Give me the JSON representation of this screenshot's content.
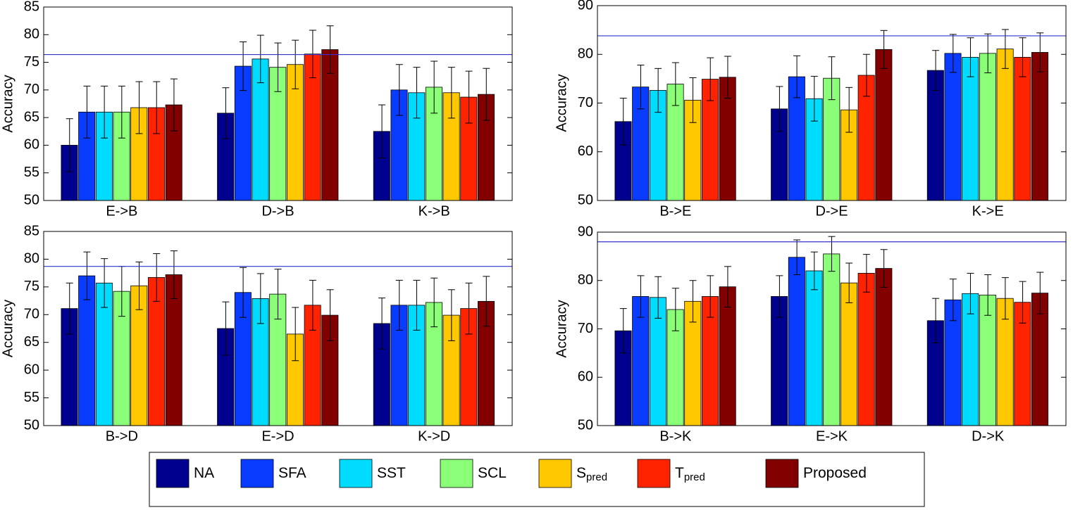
{
  "chart_data": [
    {
      "type": "bar",
      "y_label": "Accuracy",
      "categories": [
        "E->B",
        "D->B",
        "K->B"
      ],
      "ylim": [
        50,
        85
      ],
      "yticks": [
        50,
        55,
        60,
        65,
        70,
        75,
        80,
        85
      ],
      "reference_line": 76.4,
      "series": [
        {
          "name": "NA",
          "color": "#00008f",
          "values": [
            60,
            65.8,
            62.5
          ],
          "errors": [
            4.8,
            4.6,
            4.8
          ]
        },
        {
          "name": "SFA",
          "color": "#0a3cff",
          "values": [
            66,
            74.3,
            70
          ],
          "errors": [
            4.7,
            4.4,
            4.6
          ]
        },
        {
          "name": "SST",
          "color": "#00dcff",
          "values": [
            66,
            75.6,
            69.5
          ],
          "errors": [
            4.7,
            4.3,
            4.6
          ]
        },
        {
          "name": "SCL",
          "color": "#8cff78",
          "values": [
            66,
            74.1,
            70.5
          ],
          "errors": [
            4.7,
            4.4,
            4.7
          ]
        },
        {
          "name": "S",
          "name_sub": "pred",
          "color": "#ffc800",
          "values": [
            66.8,
            74.6,
            69.5
          ],
          "errors": [
            4.7,
            4.4,
            4.6
          ]
        },
        {
          "name": "T",
          "name_sub": "pred",
          "color": "#ff2300",
          "values": [
            66.8,
            76.5,
            68.7
          ],
          "errors": [
            4.7,
            4.3,
            4.7
          ]
        },
        {
          "name": "Proposed",
          "color": "#820000",
          "values": [
            67.3,
            77.3,
            69.2
          ],
          "errors": [
            4.7,
            4.3,
            4.7
          ]
        }
      ]
    },
    {
      "type": "bar",
      "y_label": "Accuracy",
      "categories": [
        "B->E",
        "D->E",
        "K->E"
      ],
      "ylim": [
        50,
        90
      ],
      "yticks": [
        50,
        60,
        70,
        80,
        90
      ],
      "reference_line": 83.8,
      "series": [
        {
          "values": [
            66.2,
            68.8,
            76.7
          ],
          "errors": [
            4.8,
            4.6,
            4.1
          ]
        },
        {
          "values": [
            73.3,
            75.4,
            80.2
          ],
          "errors": [
            4.5,
            4.3,
            3.9
          ]
        },
        {
          "values": [
            72.6,
            70.9,
            79.4
          ],
          "errors": [
            4.5,
            4.6,
            4.0
          ]
        },
        {
          "values": [
            73.9,
            75.1,
            80.2
          ],
          "errors": [
            4.4,
            4.4,
            4.0
          ]
        },
        {
          "values": [
            70.6,
            68.6,
            81.1
          ],
          "errors": [
            4.6,
            4.6,
            4.0
          ]
        },
        {
          "values": [
            74.9,
            75.7,
            79.4
          ],
          "errors": [
            4.4,
            4.3,
            4.0
          ]
        },
        {
          "values": [
            75.3,
            81,
            80.4
          ],
          "errors": [
            4.3,
            3.9,
            4.0
          ]
        }
      ]
    },
    {
      "type": "bar",
      "y_label": "Accuracy",
      "categories": [
        "B->D",
        "E->D",
        "K->D"
      ],
      "ylim": [
        50,
        85
      ],
      "yticks": [
        50,
        55,
        60,
        65,
        70,
        75,
        80,
        85
      ],
      "reference_line": 78.7,
      "series": [
        {
          "values": [
            71.1,
            67.5,
            68.4
          ],
          "errors": [
            4.6,
            4.8,
            4.6
          ]
        },
        {
          "values": [
            77,
            74,
            71.7
          ],
          "errors": [
            4.3,
            4.5,
            4.5
          ]
        },
        {
          "values": [
            75.7,
            72.9,
            71.7
          ],
          "errors": [
            4.4,
            4.5,
            4.5
          ]
        },
        {
          "values": [
            74.2,
            73.7,
            72.2
          ],
          "errors": [
            4.5,
            4.5,
            4.4
          ]
        },
        {
          "values": [
            75.2,
            66.5,
            69.9
          ],
          "errors": [
            4.3,
            4.8,
            4.6
          ]
        },
        {
          "values": [
            76.7,
            71.7,
            71.1
          ],
          "errors": [
            4.3,
            4.5,
            4.6
          ]
        },
        {
          "values": [
            77.2,
            69.9,
            72.4
          ],
          "errors": [
            4.3,
            4.6,
            4.5
          ]
        }
      ]
    },
    {
      "type": "bar",
      "y_label": "Accuracy",
      "categories": [
        "B->K",
        "E->K",
        "D->K"
      ],
      "ylim": [
        50,
        90
      ],
      "yticks": [
        50,
        60,
        70,
        80,
        90
      ],
      "reference_line": 88,
      "series": [
        {
          "values": [
            69.6,
            76.7,
            71.7
          ],
          "errors": [
            4.6,
            4.3,
            4.6
          ]
        },
        {
          "values": [
            76.7,
            84.8,
            76
          ],
          "errors": [
            4.3,
            3.6,
            4.3
          ]
        },
        {
          "values": [
            76.5,
            82,
            77.3
          ],
          "errors": [
            4.3,
            3.9,
            4.2
          ]
        },
        {
          "values": [
            74,
            85.5,
            77
          ],
          "errors": [
            4.4,
            3.6,
            4.2
          ]
        },
        {
          "values": [
            75.7,
            79.5,
            76.3
          ],
          "errors": [
            4.3,
            4.1,
            4.3
          ]
        },
        {
          "values": [
            76.7,
            81.5,
            75.5
          ],
          "errors": [
            4.3,
            3.9,
            4.3
          ]
        },
        {
          "values": [
            78.7,
            82.5,
            77.4
          ],
          "errors": [
            4.2,
            3.9,
            4.3
          ]
        }
      ]
    }
  ]
}
